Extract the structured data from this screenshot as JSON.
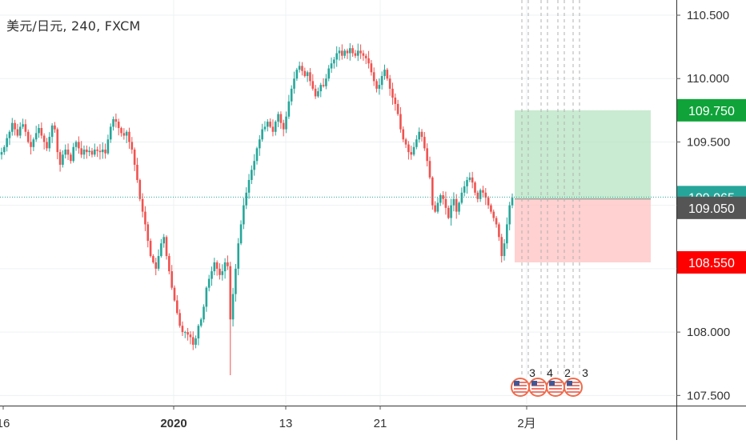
{
  "chart_title": {
    "symbol": "美元/日元",
    "interval": "240",
    "source": "FXCM"
  },
  "colors": {
    "up": "#26a69a",
    "down": "#ef5350",
    "grid": "#eef0f3",
    "axis_text": "#333333",
    "price_line": "#26a69a",
    "profit_zone": "#b7e4c1",
    "loss_zone": "#ffc2c2",
    "target_badge": "#0fa33a",
    "current_badge": "#26a69a",
    "entry_badge": "#555555",
    "stop_badge": "#ff0000",
    "events_marker": "#f06b4a"
  },
  "chart_data": {
    "type": "candlestick",
    "y_axis": {
      "ticks": [
        107.5,
        108.0,
        108.5,
        109.0,
        109.5,
        110.0,
        110.5
      ],
      "tick_labels": [
        "107.500",
        "108.000",
        "108.500",
        "109.000",
        "109.500",
        "110.000",
        "110.500"
      ],
      "range": [
        107.42,
        110.62
      ]
    },
    "x_axis": {
      "tick_labels": [
        "16",
        "2020",
        "13",
        "21",
        "2月"
      ]
    },
    "series_close": [
      109.42,
      109.46,
      109.53,
      109.58,
      109.65,
      109.6,
      109.55,
      109.62,
      109.64,
      109.58,
      109.5,
      109.46,
      109.52,
      109.57,
      109.61,
      109.55,
      109.5,
      109.45,
      109.54,
      109.63,
      109.6,
      109.42,
      109.32,
      109.4,
      109.44,
      109.4,
      109.35,
      109.46,
      109.5,
      109.45,
      109.4,
      109.44,
      109.42,
      109.43,
      109.4,
      109.44,
      109.43,
      109.42,
      109.44,
      109.41,
      109.52,
      109.62,
      109.68,
      109.66,
      109.61,
      109.57,
      109.55,
      109.58,
      109.5,
      109.44,
      109.32,
      109.2,
      109.05,
      108.95,
      108.85,
      108.72,
      108.6,
      108.55,
      108.5,
      108.6,
      108.7,
      108.75,
      108.6,
      108.48,
      108.35,
      108.25,
      108.15,
      108.05,
      108.0,
      108.0,
      107.98,
      107.96,
      107.9,
      107.95,
      108.05,
      108.1,
      108.2,
      108.35,
      108.42,
      108.48,
      108.55,
      108.5,
      108.45,
      108.48,
      108.55,
      108.52,
      108.1,
      108.3,
      108.5,
      108.7,
      108.85,
      109.0,
      109.1,
      109.2,
      109.28,
      109.35,
      109.45,
      109.52,
      109.6,
      109.62,
      109.66,
      109.62,
      109.58,
      109.66,
      109.72,
      109.65,
      109.6,
      109.7,
      109.82,
      109.92,
      110.0,
      110.07,
      110.1,
      110.06,
      110.02,
      110.05,
      109.98,
      109.92,
      109.86,
      109.9,
      109.95,
      109.94,
      110.0,
      110.08,
      110.12,
      110.15,
      110.2,
      110.22,
      110.18,
      110.22,
      110.2,
      110.24,
      110.2,
      110.18,
      110.22,
      110.2,
      110.18,
      110.16,
      110.12,
      110.05,
      109.98,
      109.92,
      109.95,
      110.02,
      110.07,
      110.0,
      109.92,
      109.85,
      109.8,
      109.72,
      109.6,
      109.52,
      109.48,
      109.42,
      109.4,
      109.46,
      109.52,
      109.58,
      109.54,
      109.45,
      109.35,
      109.22,
      109.0,
      108.95,
      109.02,
      109.08,
      109.05,
      108.98,
      108.9,
      109.0,
      109.05,
      108.95,
      109.02,
      109.1,
      109.15,
      109.2,
      109.22,
      109.18,
      109.1,
      109.05,
      109.12,
      109.1,
      109.06,
      109.0,
      108.95,
      108.9,
      108.85,
      108.75,
      108.6,
      108.7,
      108.85,
      109.0,
      109.06
    ],
    "pending_event_counts": [
      "3",
      "4",
      "2",
      "3"
    ],
    "position": {
      "target": "109.750",
      "current": "109.065",
      "entry": "109.050",
      "stop": "108.550"
    }
  }
}
